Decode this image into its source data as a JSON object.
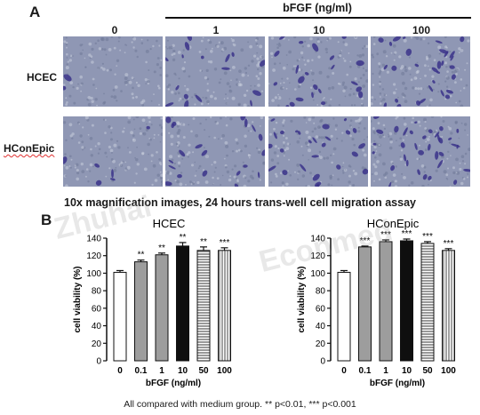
{
  "panel_a": {
    "letter": "A",
    "header_group_label": "bFGF (ng/ml)",
    "columns": [
      "0",
      "1",
      "10",
      "100"
    ],
    "rows": [
      "HCEC",
      "HConEpic"
    ],
    "caption": "10x magnification images, 24 hours trans-well cell migration assay"
  },
  "panel_b": {
    "letter": "B",
    "footnote": "All compared with medium group. ** p<0.01, *** p<0.001"
  },
  "watermark": {
    "line1": "Zhuhai",
    "line2": "Econmed"
  },
  "colors": {
    "micro_bg": "#8f97b4",
    "cell_stain": "#3b3289",
    "bar_outline": "#111111"
  },
  "chart_data": [
    {
      "type": "bar",
      "title": "HCEC",
      "categories": [
        "0",
        "0.1",
        "1",
        "10",
        "50",
        "100"
      ],
      "values": [
        101,
        113,
        121,
        131,
        126,
        126
      ],
      "errors": [
        2,
        2,
        2,
        4,
        4,
        3
      ],
      "significance": [
        "",
        "**",
        "**",
        "**",
        "**",
        "***"
      ],
      "fills": [
        "white",
        "gray",
        "gray",
        "black",
        "hstripes",
        "vstripes"
      ],
      "xlabel": "bFGF  (ng/ml)",
      "ylabel": "cell viability (%)",
      "ylim": [
        0,
        140
      ],
      "yticks": [
        0,
        20,
        40,
        60,
        80,
        100,
        120,
        140
      ]
    },
    {
      "type": "bar",
      "title": "HConEpic",
      "categories": [
        "0",
        "0.1",
        "1",
        "10",
        "50",
        "100"
      ],
      "values": [
        101,
        130,
        136,
        137,
        134,
        126
      ],
      "errors": [
        2,
        1,
        2,
        2,
        2,
        2
      ],
      "significance": [
        "",
        "***",
        "***",
        "***",
        "***",
        "***"
      ],
      "fills": [
        "white",
        "gray",
        "gray",
        "black",
        "hstripes",
        "vstripes"
      ],
      "xlabel": "bFGF  (ng/ml)",
      "ylabel": "cell viability (%)",
      "ylim": [
        0,
        140
      ],
      "yticks": [
        0,
        20,
        40,
        60,
        80,
        100,
        120,
        140
      ]
    }
  ]
}
